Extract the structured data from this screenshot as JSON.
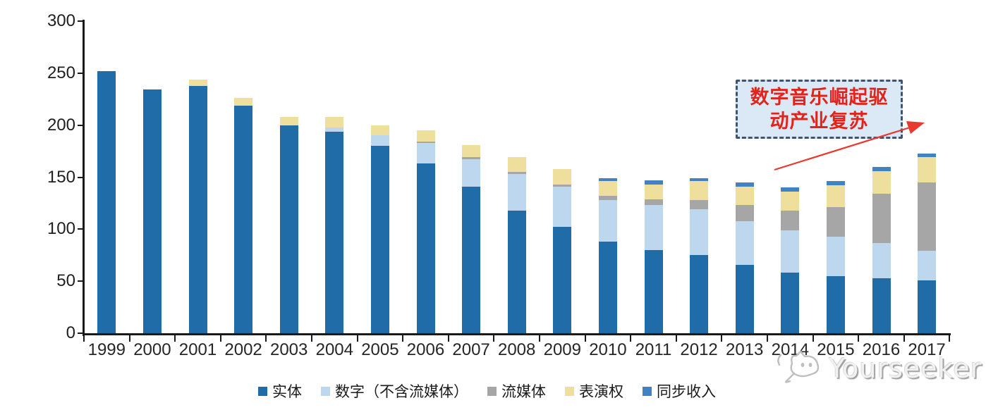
{
  "chart_data": {
    "type": "bar",
    "stacked": true,
    "title": "",
    "xlabel": "",
    "ylabel": "",
    "categories": [
      "1999",
      "2000",
      "2001",
      "2002",
      "2003",
      "2004",
      "2005",
      "2006",
      "2007",
      "2008",
      "2009",
      "2010",
      "2011",
      "2012",
      "2013",
      "2014",
      "2015",
      "2016",
      "2017"
    ],
    "series": [
      {
        "name": "实体",
        "color": "#1f6ca9",
        "values": [
          252,
          234,
          238,
          219,
          200,
          194,
          180,
          163,
          141,
          118,
          102,
          88,
          80,
          75,
          66,
          58,
          55,
          53,
          51
        ]
      },
      {
        "name": "数字（不含流媒体）",
        "color": "#bdd7ee",
        "values": [
          0,
          0,
          0,
          0,
          0,
          4,
          10,
          20,
          26,
          35,
          39,
          40,
          43,
          44,
          42,
          41,
          38,
          34,
          28
        ]
      },
      {
        "name": "流媒体",
        "color": "#a6a6a6",
        "values": [
          0,
          0,
          0,
          0,
          0,
          0,
          0,
          1,
          2,
          2,
          2,
          4,
          6,
          9,
          15,
          19,
          28,
          47,
          66
        ]
      },
      {
        "name": "表演权",
        "color": "#eedf9c",
        "values": [
          0,
          0,
          6,
          7,
          8,
          10,
          10,
          11,
          12,
          14,
          15,
          14,
          14,
          18,
          18,
          18,
          21,
          22,
          24
        ]
      },
      {
        "name": "同步收入",
        "color": "#4182c3",
        "values": [
          0,
          0,
          0,
          0,
          0,
          0,
          0,
          0,
          0,
          0,
          0,
          3,
          4,
          3,
          4,
          4,
          4,
          4,
          4
        ]
      }
    ],
    "ylim": [
      0,
      300
    ],
    "yticks": [
      0,
      50,
      100,
      150,
      200,
      250,
      300
    ],
    "grid": false,
    "legend_position": "bottom"
  },
  "annotation": {
    "line1": "数字音乐崛起驱",
    "line2": "动产业复苏",
    "box_fill": "#dbe9f6",
    "border_color": "#3f5471",
    "text_color": "#e0241b",
    "arrow_color": "#e8392f"
  },
  "watermark": {
    "text": "Yourseeker",
    "logo": "cat-doodle-icon",
    "color": "#c9c9c9"
  }
}
